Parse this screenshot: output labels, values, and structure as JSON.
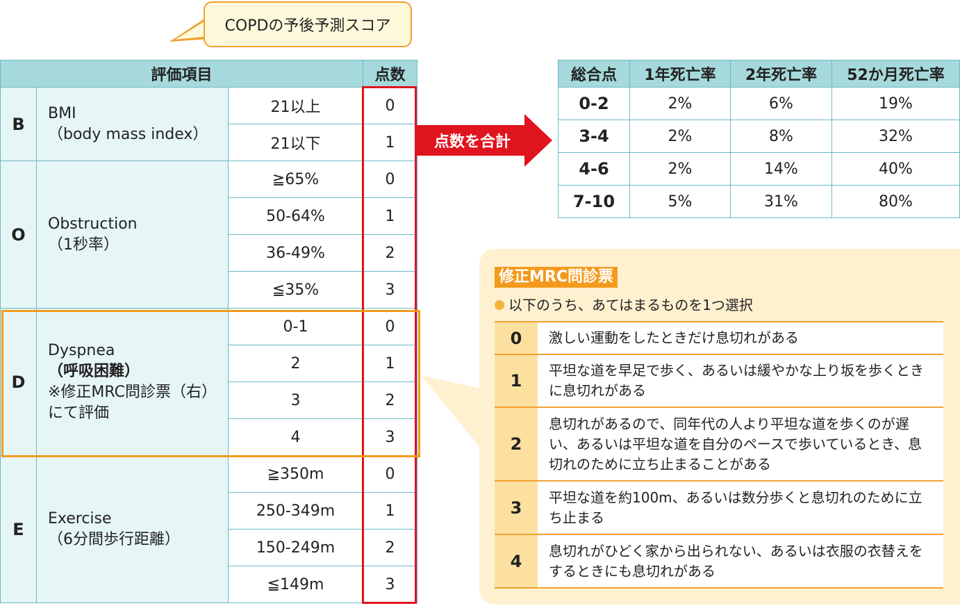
{
  "title": "COPDの予後予測スコア",
  "main_table": {
    "header_item": "評価項目",
    "header_score": "点数",
    "groups": [
      {
        "letter": "B",
        "name": "BMI",
        "sub": "（body mass index）",
        "note": "",
        "rows": [
          {
            "cond": "21以上",
            "score": "0"
          },
          {
            "cond": "21以下",
            "score": "1"
          }
        ]
      },
      {
        "letter": "O",
        "name": "Obstruction",
        "sub": "（1秒率）",
        "note": "",
        "rows": [
          {
            "cond": "≧65%",
            "score": "0"
          },
          {
            "cond": "50-64%",
            "score": "1"
          },
          {
            "cond": "36-49%",
            "score": "2"
          },
          {
            "cond": "≦35%",
            "score": "3"
          }
        ]
      },
      {
        "letter": "D",
        "name": "Dyspnea",
        "sub": "（呼吸困難）",
        "note": "※修正MRC問診票（右）にて評価",
        "rows": [
          {
            "cond": "0-1",
            "score": "0"
          },
          {
            "cond": "2",
            "score": "1"
          },
          {
            "cond": "3",
            "score": "2"
          },
          {
            "cond": "4",
            "score": "3"
          }
        ]
      },
      {
        "letter": "E",
        "name": "Exercise",
        "sub": "（6分間歩行距離）",
        "note": "",
        "rows": [
          {
            "cond": "≧350m",
            "score": "0"
          },
          {
            "cond": "250-349m",
            "score": "1"
          },
          {
            "cond": "150-249m",
            "score": "2"
          },
          {
            "cond": "≦149m",
            "score": "3"
          }
        ]
      }
    ]
  },
  "arrow_label": "点数を合計",
  "result_table": {
    "headers": [
      "総合点",
      "1年死亡率",
      "2年死亡率",
      "52か月死亡率"
    ],
    "rows": [
      [
        "0-2",
        "2%",
        "6%",
        "19%"
      ],
      [
        "3-4",
        "2%",
        "8%",
        "32%"
      ],
      [
        "4-6",
        "2%",
        "14%",
        "40%"
      ],
      [
        "7-10",
        "5%",
        "31%",
        "80%"
      ]
    ]
  },
  "mrc": {
    "title": "修正MRC問診票",
    "instruction": "以下のうち、あてはまるものを1つ選択",
    "rows": [
      {
        "grade": "0",
        "text": "激しい運動をしたときだけ息切れがある"
      },
      {
        "grade": "1",
        "text": "平坦な道を早足で歩く、あるいは緩やかな上り坂を歩くときに息切れがある"
      },
      {
        "grade": "2",
        "text": "息切れがあるので、同年代の人より平坦な道を歩くのが遅い、あるいは平坦な道を自分のペースで歩いているとき、息切れのために立ち止まることがある"
      },
      {
        "grade": "3",
        "text": "平坦な道を約100m、あるいは数分歩くと息切れのために立ち止まる"
      },
      {
        "grade": "4",
        "text": "息切れがひどく家から出られない、あるいは衣服の衣替えをするときにも息切れがある"
      }
    ]
  },
  "colors": {
    "header_teal": "#a6d9dc",
    "cell_light": "#e6f5f6",
    "red": "#e0141e",
    "orange": "#f39a1c",
    "mrc_bg": "#fff1d0"
  }
}
